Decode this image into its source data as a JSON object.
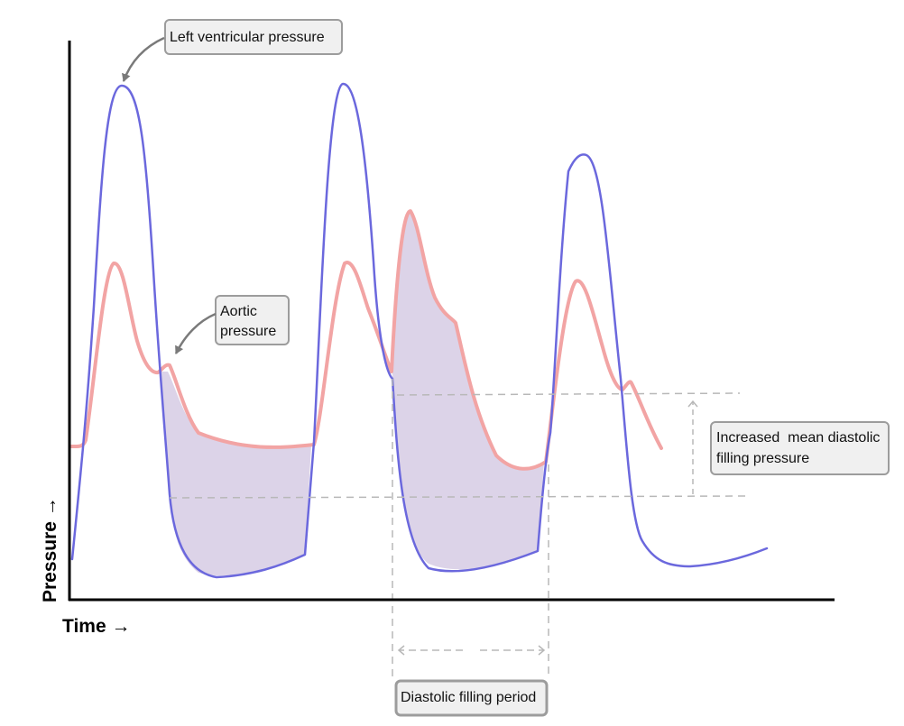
{
  "axes": {
    "x_label": "Time →",
    "y_label": "Pressure →"
  },
  "callouts": {
    "lv_pressure": "Left ventricular pressure",
    "aortic_line1": "Aortic",
    "aortic_line2": "pressure",
    "increased_line1": "Increased  mean diastolic",
    "increased_line2": "filling pressure",
    "diastolic_period": "Diastolic filling period"
  },
  "colors": {
    "lv_line": "#6b68dd",
    "aortic_line": "#f2a4a4",
    "shade_fill": "#dcd3e8",
    "dashed_guides": "#b8b8b8",
    "box_fill": "#f0f0f0",
    "box_border": "#9c9c9c",
    "arrow": "#7a7a7a"
  }
}
